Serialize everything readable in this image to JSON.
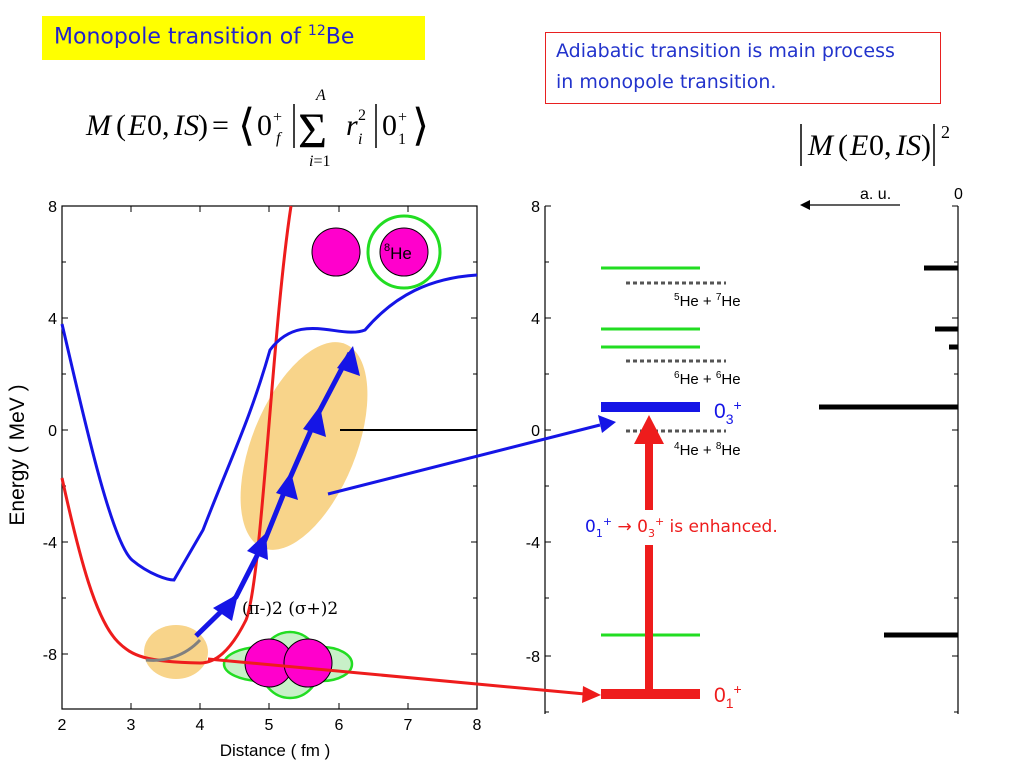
{
  "title": {
    "text": "Monopole transition  of ",
    "sup": "12",
    "element": "Be"
  },
  "note": {
    "line1": "Adiabatic transition is main process",
    "line2": "in monopole transition."
  },
  "formula_main": "M(E0, IS) = ⟨0f+ | Σ i=1..A ri² | 01+⟩",
  "formula_strength": "|M(E0, IS)|²",
  "left_plot": {
    "ylabel": "Energy ( MeV )",
    "xlabel": "Distance ( fm )",
    "x_ticks": [
      "2",
      "3",
      "4",
      "5",
      "6",
      "7",
      "8"
    ],
    "y_ticks": [
      "8",
      "4",
      "0",
      "-4",
      "-8"
    ],
    "he8_label": "He",
    "he8_sup": "8",
    "orbital_label": "(π-)2 (σ+)2"
  },
  "middle_plot": {
    "y_ticks": [
      "8",
      "4",
      "0",
      "-4",
      "-8"
    ],
    "threshold_5he7he": {
      "a": "5",
      "b": "He + ",
      "c": "7",
      "d": "He"
    },
    "threshold_6he6he": {
      "a": "6",
      "b": "He + ",
      "c": "6",
      "d": "He"
    },
    "threshold_4he8he": {
      "a": "4",
      "b": "He + ",
      "c": "8",
      "d": "He"
    },
    "state_03": "0",
    "state_03_sub": "3",
    "state_03_sup": "+",
    "state_01": "0",
    "state_01_sub": "1",
    "state_01_sup": "+",
    "enhanced_text": " is enhanced."
  },
  "right_plot": {
    "unit_label": "a. u.",
    "zero_label": "0"
  },
  "colors": {
    "red": "#ee1c1c",
    "blue": "#1515e6",
    "green": "#22dd22",
    "orange": "#f8d48a",
    "magenta": "#ff00cc",
    "yellow": "#ffff00"
  }
}
